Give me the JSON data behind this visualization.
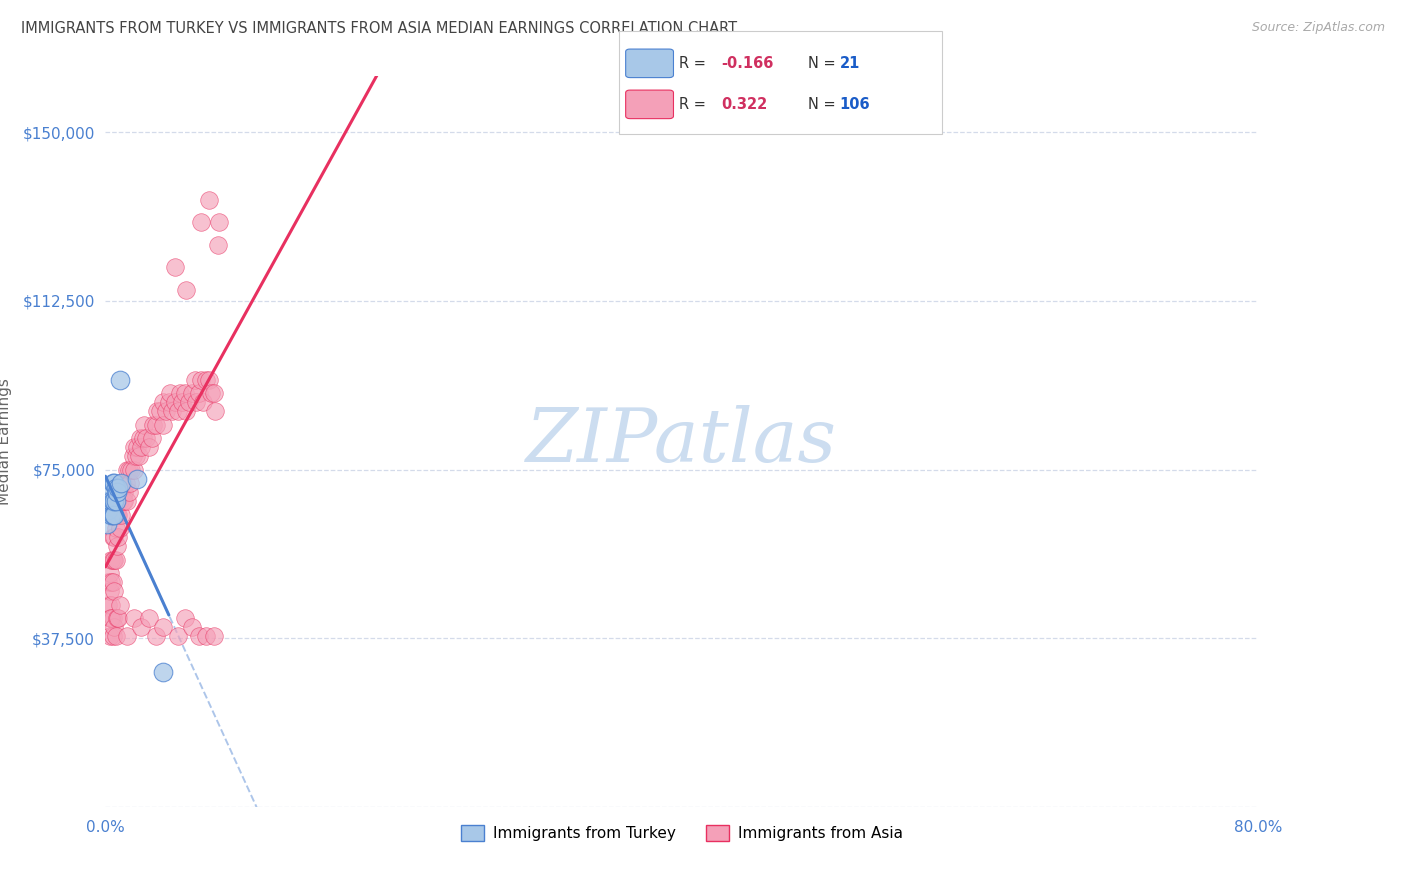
{
  "title": "IMMIGRANTS FROM TURKEY VS IMMIGRANTS FROM ASIA MEDIAN EARNINGS CORRELATION CHART",
  "source": "Source: ZipAtlas.com",
  "ylabel": "Median Earnings",
  "x_min": 0.0,
  "x_max": 0.8,
  "y_min": 0,
  "y_max": 162500,
  "y_ticks": [
    0,
    37500,
    75000,
    112500,
    150000
  ],
  "y_tick_labels": [
    "",
    "$37,500",
    "$75,000",
    "$112,500",
    "$150,000"
  ],
  "legend_labels": [
    "Immigrants from Turkey",
    "Immigrants from Asia"
  ],
  "n_turkey": 21,
  "n_asia": 106,
  "turkey_color": "#a8c8e8",
  "asia_color": "#f4a0b8",
  "turkey_line_color": "#4a80d0",
  "asia_line_color": "#e83060",
  "background_color": "#ffffff",
  "grid_color": "#d0d8e8",
  "title_color": "#444444",
  "axis_label_color": "#666666",
  "tick_label_color": "#4a80d0",
  "watermark": "ZIPatlas",
  "watermark_color": "#ccddf0",
  "turkey_x": [
    0.001,
    0.002,
    0.002,
    0.003,
    0.003,
    0.004,
    0.004,
    0.005,
    0.005,
    0.005,
    0.006,
    0.006,
    0.006,
    0.007,
    0.007,
    0.008,
    0.009,
    0.01,
    0.011,
    0.022,
    0.04
  ],
  "turkey_y": [
    63000,
    66000,
    68000,
    68000,
    70000,
    65000,
    68000,
    72000,
    65000,
    68000,
    65000,
    68000,
    72000,
    71000,
    68000,
    70000,
    71000,
    95000,
    72000,
    73000,
    30000
  ],
  "asia_x": [
    0.002,
    0.002,
    0.003,
    0.003,
    0.003,
    0.004,
    0.004,
    0.004,
    0.005,
    0.005,
    0.005,
    0.005,
    0.006,
    0.006,
    0.006,
    0.007,
    0.007,
    0.007,
    0.008,
    0.008,
    0.008,
    0.009,
    0.009,
    0.01,
    0.01,
    0.01,
    0.011,
    0.011,
    0.012,
    0.012,
    0.013,
    0.013,
    0.014,
    0.015,
    0.015,
    0.016,
    0.016,
    0.017,
    0.018,
    0.019,
    0.02,
    0.02,
    0.021,
    0.022,
    0.023,
    0.024,
    0.025,
    0.026,
    0.027,
    0.028,
    0.03,
    0.032,
    0.033,
    0.035,
    0.036,
    0.038,
    0.04,
    0.04,
    0.042,
    0.044,
    0.045,
    0.046,
    0.048,
    0.05,
    0.052,
    0.053,
    0.055,
    0.056,
    0.058,
    0.06,
    0.062,
    0.063,
    0.065,
    0.066,
    0.068,
    0.07,
    0.072,
    0.073,
    0.075,
    0.076,
    0.003,
    0.004,
    0.005,
    0.006,
    0.007,
    0.008,
    0.009,
    0.01,
    0.015,
    0.02,
    0.025,
    0.03,
    0.035,
    0.04,
    0.05,
    0.055,
    0.06,
    0.065,
    0.07,
    0.075,
    0.078,
    0.079,
    0.048,
    0.056,
    0.066,
    0.072
  ],
  "asia_y": [
    45000,
    50000,
    42000,
    48000,
    52000,
    45000,
    50000,
    55000,
    42000,
    50000,
    55000,
    60000,
    48000,
    55000,
    60000,
    55000,
    62000,
    65000,
    58000,
    65000,
    68000,
    60000,
    65000,
    62000,
    68000,
    72000,
    65000,
    70000,
    68000,
    72000,
    70000,
    68000,
    72000,
    68000,
    75000,
    70000,
    75000,
    72000,
    75000,
    78000,
    75000,
    80000,
    78000,
    80000,
    78000,
    82000,
    80000,
    82000,
    85000,
    82000,
    80000,
    82000,
    85000,
    85000,
    88000,
    88000,
    90000,
    85000,
    88000,
    90000,
    92000,
    88000,
    90000,
    88000,
    92000,
    90000,
    92000,
    88000,
    90000,
    92000,
    95000,
    90000,
    92000,
    95000,
    90000,
    95000,
    95000,
    92000,
    92000,
    88000,
    38000,
    42000,
    38000,
    40000,
    38000,
    42000,
    42000,
    45000,
    38000,
    42000,
    40000,
    42000,
    38000,
    40000,
    38000,
    42000,
    40000,
    38000,
    38000,
    38000,
    125000,
    130000,
    120000,
    115000,
    130000,
    135000
  ]
}
